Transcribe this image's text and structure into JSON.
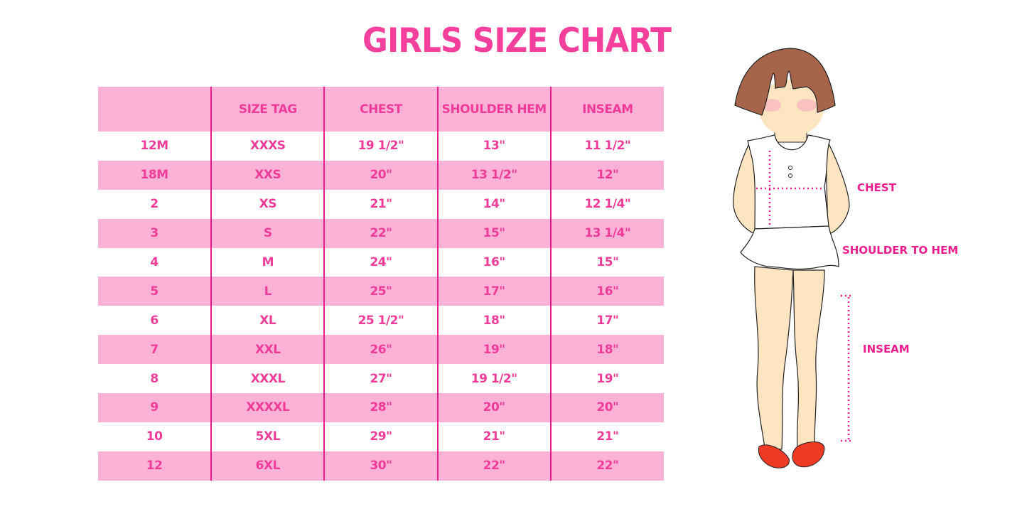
{
  "title": "GIRLS SIZE CHART",
  "table": {
    "headers": [
      "",
      "SIZE TAG",
      "CHEST",
      "SHOULDER HEM",
      "INSEAM"
    ],
    "rows": [
      [
        "12M",
        "XXXS",
        "19 1/2\"",
        "13\"",
        "11 1/2\""
      ],
      [
        "18M",
        "XXS",
        "20\"",
        "13 1/2\"",
        "12\""
      ],
      [
        "2",
        "XS",
        "21\"",
        "14\"",
        "12 1/4\""
      ],
      [
        "3",
        "S",
        "22\"",
        "15\"",
        "13 1/4\""
      ],
      [
        "4",
        "M",
        "24\"",
        "16\"",
        "15\""
      ],
      [
        "5",
        "L",
        "25\"",
        "17\"",
        "16\""
      ],
      [
        "6",
        "XL",
        "25 1/2\"",
        "18\"",
        "17\""
      ],
      [
        "7",
        "XXL",
        "26\"",
        "19\"",
        "18\""
      ],
      [
        "8",
        "XXXL",
        "27\"",
        "19 1/2\"",
        "19\""
      ],
      [
        "9",
        "XXXXL",
        "28\"",
        "20\"",
        "20\""
      ],
      [
        "10",
        "5XL",
        "29\"",
        "21\"",
        "21\""
      ],
      [
        "12",
        "6XL",
        "30\"",
        "22\"",
        "22\""
      ]
    ]
  },
  "illustration": {
    "labels": {
      "chest": "CHEST",
      "shoulder": "SHOULDER TO HEM",
      "inseam": "INSEAM"
    }
  },
  "colors": {
    "title": "#f43f9c",
    "row_pink": "#fcb1d7",
    "text": "#ef3c98",
    "divider": "#e8198b",
    "measure": "#ec1c8c"
  }
}
